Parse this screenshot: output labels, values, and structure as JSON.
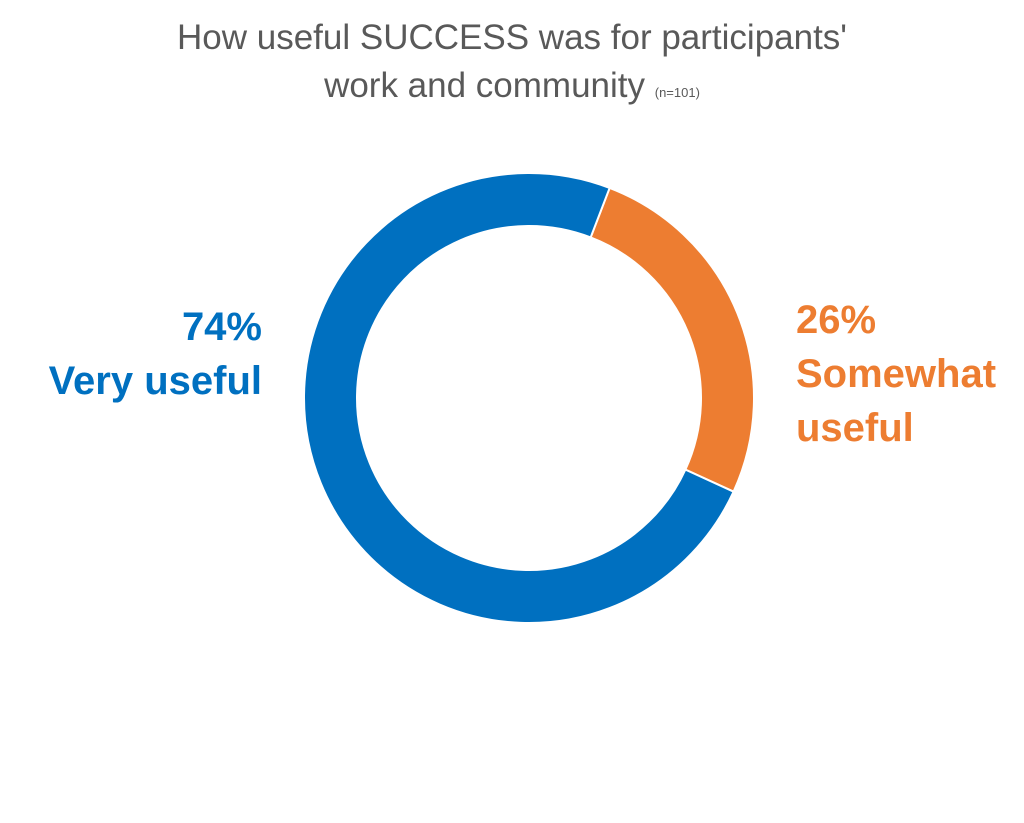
{
  "chart_data": {
    "type": "pie",
    "title_line1": "How useful SUCCESS was for participants'",
    "title_line2": "work and community",
    "sample_note": "(n=101)",
    "slices": [
      {
        "label": "Very useful",
        "percent_label": "74%",
        "value": 74,
        "color": "#0070C0"
      },
      {
        "label": "Somewhat useful",
        "percent_label": "26%",
        "value": 26,
        "color": "#ED7D31"
      }
    ],
    "donut": true
  },
  "labels": {
    "left": {
      "value": "74%",
      "text": "Very useful"
    },
    "right": {
      "value": "26%",
      "text_line1": "Somewhat",
      "text_line2": "useful"
    }
  },
  "colors": {
    "title": "#595959",
    "very_useful": "#0070C0",
    "somewhat_useful": "#ED7D31"
  }
}
